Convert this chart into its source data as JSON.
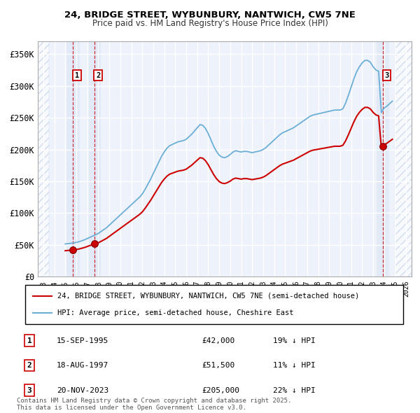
{
  "title1": "24, BRIDGE STREET, WYBUNBURY, NANTWICH, CW5 7NE",
  "title2": "Price paid vs. HM Land Registry's House Price Index (HPI)",
  "xlim_left": 1992.5,
  "xlim_right": 2026.5,
  "ylim_bottom": 0,
  "ylim_top": 370000,
  "yticks": [
    0,
    50000,
    100000,
    150000,
    200000,
    250000,
    300000,
    350000
  ],
  "ytick_labels": [
    "£0",
    "£50K",
    "£100K",
    "£150K",
    "£200K",
    "£250K",
    "£300K",
    "£350K"
  ],
  "xticks": [
    1993,
    1994,
    1995,
    1996,
    1997,
    1998,
    1999,
    2000,
    2001,
    2002,
    2003,
    2004,
    2005,
    2006,
    2007,
    2008,
    2009,
    2010,
    2011,
    2012,
    2013,
    2014,
    2015,
    2016,
    2017,
    2018,
    2019,
    2020,
    2021,
    2022,
    2023,
    2024,
    2025,
    2026
  ],
  "hpi_color": "#6baed6",
  "price_color": "#cc0000",
  "background_color": "#eef2fb",
  "grid_color": "#ffffff",
  "transactions": [
    {
      "label": "1",
      "date_str": "15-SEP-1995",
      "year": 1995.71,
      "price": 42000,
      "pct": "19%",
      "dir": "↓"
    },
    {
      "label": "2",
      "date_str": "18-AUG-1997",
      "year": 1997.63,
      "price": 51500,
      "pct": "11%",
      "dir": "↓"
    },
    {
      "label": "3",
      "date_str": "20-NOV-2023",
      "year": 2023.89,
      "price": 205000,
      "pct": "22%",
      "dir": "↓"
    }
  ],
  "legend_line1": "24, BRIDGE STREET, WYBUNBURY, NANTWICH, CW5 7NE (semi-detached house)",
  "legend_line2": "HPI: Average price, semi-detached house, Cheshire East",
  "footnote": "Contains HM Land Registry data © Crown copyright and database right 2025.\nThis data is licensed under the Open Government Licence v3.0.",
  "hpi_data_x": [
    1995.0,
    1995.25,
    1995.5,
    1995.75,
    1996.0,
    1996.25,
    1996.5,
    1996.75,
    1997.0,
    1997.25,
    1997.5,
    1997.75,
    1998.0,
    1998.25,
    1998.5,
    1998.75,
    1999.0,
    1999.25,
    1999.5,
    1999.75,
    2000.0,
    2000.25,
    2000.5,
    2000.75,
    2001.0,
    2001.25,
    2001.5,
    2001.75,
    2002.0,
    2002.25,
    2002.5,
    2002.75,
    2003.0,
    2003.25,
    2003.5,
    2003.75,
    2004.0,
    2004.25,
    2004.5,
    2004.75,
    2005.0,
    2005.25,
    2005.5,
    2005.75,
    2006.0,
    2006.25,
    2006.5,
    2006.75,
    2007.0,
    2007.25,
    2007.5,
    2007.75,
    2008.0,
    2008.25,
    2008.5,
    2008.75,
    2009.0,
    2009.25,
    2009.5,
    2009.75,
    2010.0,
    2010.25,
    2010.5,
    2010.75,
    2011.0,
    2011.25,
    2011.5,
    2011.75,
    2012.0,
    2012.25,
    2012.5,
    2012.75,
    2013.0,
    2013.25,
    2013.5,
    2013.75,
    2014.0,
    2014.25,
    2014.5,
    2014.75,
    2015.0,
    2015.25,
    2015.5,
    2015.75,
    2016.0,
    2016.25,
    2016.5,
    2016.75,
    2017.0,
    2017.25,
    2017.5,
    2017.75,
    2018.0,
    2018.25,
    2018.5,
    2018.75,
    2019.0,
    2019.25,
    2019.5,
    2019.75,
    2020.0,
    2020.25,
    2020.5,
    2020.75,
    2021.0,
    2021.25,
    2021.5,
    2021.75,
    2022.0,
    2022.25,
    2022.5,
    2022.75,
    2023.0,
    2023.25,
    2023.5,
    2023.75,
    2024.0,
    2024.25,
    2024.5,
    2024.75
  ],
  "hpi_data_y": [
    51500,
    52000,
    52500,
    53000,
    54000,
    55000,
    56500,
    58000,
    60000,
    62000,
    64000,
    66000,
    68000,
    71000,
    74000,
    77000,
    81000,
    85000,
    89000,
    93000,
    97000,
    101000,
    105000,
    109000,
    113000,
    117000,
    121000,
    125000,
    130000,
    137000,
    145000,
    153000,
    162000,
    171000,
    180000,
    189000,
    196000,
    202000,
    206000,
    208000,
    210000,
    212000,
    213000,
    214000,
    216000,
    220000,
    224000,
    229000,
    234000,
    239000,
    238000,
    233000,
    225000,
    215000,
    205000,
    197000,
    191000,
    188000,
    187000,
    189000,
    192000,
    196000,
    198000,
    197000,
    196000,
    197000,
    197000,
    196000,
    195000,
    196000,
    197000,
    198000,
    200000,
    203000,
    207000,
    211000,
    215000,
    219000,
    223000,
    226000,
    228000,
    230000,
    232000,
    234000,
    237000,
    240000,
    243000,
    246000,
    249000,
    252000,
    254000,
    255000,
    256000,
    257000,
    258000,
    259000,
    260000,
    261000,
    262000,
    262000,
    262000,
    264000,
    273000,
    285000,
    298000,
    311000,
    322000,
    330000,
    336000,
    340000,
    340000,
    337000,
    330000,
    325000,
    323000,
    258000,
    265000,
    268000,
    272000,
    276000
  ]
}
